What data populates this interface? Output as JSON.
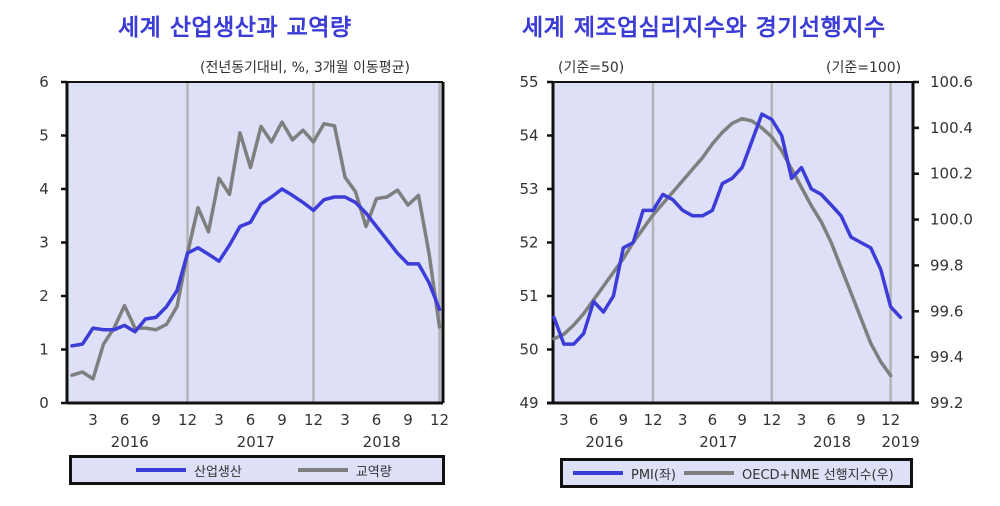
{
  "charts": {
    "left": {
      "title": "세계 산업생산과 교역량",
      "unit_note": "(전년동기대비, %, 3개월 이동평균)",
      "legend": [
        "산업생산",
        "교역량"
      ]
    },
    "right": {
      "title": "세계 제조업심리지수와 경기선행지수",
      "left_note": "(기준=50)",
      "right_note": "(기준=100)",
      "legend": [
        "PMI(좌)",
        "OECD+NME 선행지수(우)"
      ]
    }
  },
  "colors": {
    "blue": "#3c3cd8",
    "gray": "#7f7f7f",
    "plot_bg": "#dde0f7",
    "grid": "#b4b4b4"
  },
  "chart_data": [
    {
      "type": "line",
      "title": "세계 산업생산과 교역량",
      "subtitle": "(전년동기대비, %, 3개월 이동평균)",
      "xlabel": "",
      "ylabel": "",
      "ylim": [
        0,
        6
      ],
      "yticks": [
        0,
        1,
        2,
        3,
        4,
        5,
        6
      ],
      "x_tick_labels": [
        "3",
        "6",
        "9",
        "12",
        "3",
        "6",
        "9",
        "12",
        "3",
        "6",
        "9",
        "12"
      ],
      "x_year_labels": [
        "2016",
        "2017",
        "2018"
      ],
      "x": [
        "2016-01",
        "2016-02",
        "2016-03",
        "2016-04",
        "2016-05",
        "2016-06",
        "2016-07",
        "2016-08",
        "2016-09",
        "2016-10",
        "2016-11",
        "2016-12",
        "2017-01",
        "2017-02",
        "2017-03",
        "2017-04",
        "2017-05",
        "2017-06",
        "2017-07",
        "2017-08",
        "2017-09",
        "2017-10",
        "2017-11",
        "2017-12",
        "2018-01",
        "2018-02",
        "2018-03",
        "2018-04",
        "2018-05",
        "2018-06",
        "2018-07",
        "2018-08",
        "2018-09",
        "2018-10",
        "2018-11",
        "2018-12"
      ],
      "series": [
        {
          "name": "산업생산",
          "color": "#3c3cd8",
          "values": [
            1.07,
            1.1,
            1.4,
            1.37,
            1.37,
            1.45,
            1.33,
            1.57,
            1.6,
            1.8,
            2.1,
            2.8,
            2.9,
            2.78,
            2.65,
            2.95,
            3.3,
            3.38,
            3.72,
            3.85,
            4.0,
            3.88,
            3.75,
            3.6,
            3.8,
            3.85,
            3.85,
            3.75,
            3.55,
            3.3,
            3.05,
            2.8,
            2.6,
            2.6,
            2.25,
            1.75
          ]
        },
        {
          "name": "교역량",
          "color": "#7f7f7f",
          "values": [
            0.52,
            0.58,
            0.45,
            1.1,
            1.4,
            1.82,
            1.4,
            1.4,
            1.37,
            1.47,
            1.8,
            2.8,
            3.65,
            3.2,
            4.2,
            3.9,
            5.05,
            4.4,
            5.17,
            4.88,
            5.25,
            4.92,
            5.1,
            4.88,
            5.22,
            5.18,
            4.22,
            3.95,
            3.3,
            3.82,
            3.85,
            3.98,
            3.7,
            3.88,
            2.8,
            1.42
          ]
        }
      ],
      "vlines_at": [
        "2016-12",
        "2017-12",
        "2018-12"
      ],
      "grid": false,
      "legend_position": "bottom"
    },
    {
      "type": "line",
      "title": "세계 제조업심리지수와 경기선행지수",
      "ylabel_left": "(기준=50)",
      "ylabel_right": "(기준=100)",
      "ylim": [
        49,
        55
      ],
      "yticks": [
        49,
        50,
        51,
        52,
        53,
        54,
        55
      ],
      "y2lim": [
        99.2,
        100.6
      ],
      "y2ticks": [
        "99.2",
        "99.4",
        "99.6",
        "99.8",
        "100.0",
        "100.2",
        "100.4",
        "100.6"
      ],
      "x_tick_labels": [
        "3",
        "6",
        "9",
        "12",
        "3",
        "6",
        "9",
        "12",
        "3",
        "6",
        "9",
        "12"
      ],
      "x_year_labels": [
        "2016",
        "2017",
        "2018",
        "2019"
      ],
      "x": [
        "2016-02",
        "2016-03",
        "2016-04",
        "2016-05",
        "2016-06",
        "2016-07",
        "2016-08",
        "2016-09",
        "2016-10",
        "2016-11",
        "2016-12",
        "2017-01",
        "2017-02",
        "2017-03",
        "2017-04",
        "2017-05",
        "2017-06",
        "2017-07",
        "2017-08",
        "2017-09",
        "2017-10",
        "2017-11",
        "2017-12",
        "2018-01",
        "2018-02",
        "2018-03",
        "2018-04",
        "2018-05",
        "2018-06",
        "2018-07",
        "2018-08",
        "2018-09",
        "2018-10",
        "2018-11",
        "2018-12",
        "2019-01",
        "2019-02"
      ],
      "series": [
        {
          "name": "PMI(좌)",
          "axis": "left",
          "color": "#3c3cd8",
          "values": [
            50.6,
            50.1,
            50.1,
            50.3,
            50.9,
            50.7,
            51.0,
            51.9,
            52.0,
            52.6,
            52.6,
            52.9,
            52.8,
            52.6,
            52.5,
            52.5,
            52.6,
            53.1,
            53.2,
            53.4,
            53.9,
            54.4,
            54.3,
            54.0,
            53.2,
            53.4,
            53.0,
            52.9,
            52.7,
            52.5,
            52.1,
            52.0,
            51.9,
            51.5,
            50.8,
            50.6,
            null
          ]
        },
        {
          "name": "OECD+NME 선행지수(우)",
          "axis": "right",
          "color": "#7f7f7f",
          "values": [
            99.48,
            99.5,
            99.54,
            99.59,
            99.65,
            99.71,
            99.77,
            99.83,
            99.9,
            99.96,
            100.02,
            100.07,
            100.12,
            100.17,
            100.22,
            100.27,
            100.33,
            100.38,
            100.42,
            100.44,
            100.43,
            100.4,
            100.36,
            100.3,
            100.22,
            100.14,
            100.06,
            99.99,
            99.9,
            99.79,
            99.68,
            99.57,
            99.46,
            99.38,
            99.32,
            null,
            null
          ]
        }
      ],
      "vlines_at": [
        "2016-12",
        "2017-12",
        "2018-12"
      ],
      "grid": false,
      "legend_position": "bottom"
    }
  ]
}
